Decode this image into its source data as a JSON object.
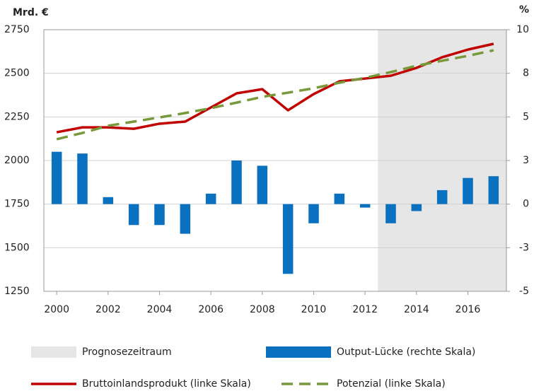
{
  "chart_data": {
    "type": "combo",
    "y_label": "Mrd. €",
    "y2_label": "%",
    "x": [
      2000,
      2001,
      2002,
      2003,
      2004,
      2005,
      2006,
      2007,
      2008,
      2009,
      2010,
      2011,
      2012,
      2013,
      2014,
      2015,
      2016,
      2017
    ],
    "xlim": [
      1999.5,
      2017.5
    ],
    "xticks": [
      2000,
      2002,
      2004,
      2006,
      2008,
      2010,
      2012,
      2014,
      2016
    ],
    "ylim": [
      1250,
      2750
    ],
    "yticks": [
      1250,
      1500,
      1750,
      2000,
      2250,
      2500,
      2750
    ],
    "y2lim": [
      -5,
      10
    ],
    "y2ticks": [
      -5,
      {
        "value": -2.5,
        "label": "-3"
      },
      0,
      {
        "value": 2.5,
        "label": "3"
      },
      5,
      {
        "value": 7.5,
        "label": "8"
      },
      10
    ],
    "grid": true,
    "shaded_region": {
      "name": "Prognosezeitraum",
      "xrange": [
        2012.5,
        2017.5
      ],
      "color": "#e6e6e6"
    },
    "series": [
      {
        "name": "Output-Lücke (rechte Skala)",
        "type": "bar",
        "axis": "y2",
        "color": "#0a70c0",
        "values": [
          3.0,
          2.9,
          0.4,
          -1.2,
          -1.2,
          -1.7,
          0.6,
          2.5,
          2.2,
          -4.0,
          -1.1,
          0.6,
          -0.2,
          -1.1,
          -0.4,
          0.8,
          1.5,
          1.6
        ]
      },
      {
        "name": "Bruttoinlandsprodukt (linke Skala)",
        "type": "line",
        "color": "#c00000",
        "values": [
          2162,
          2190,
          2190,
          2182,
          2211,
          2223,
          2304,
          2385,
          2409,
          2288,
          2381,
          2454,
          2470,
          2486,
          2531,
          2592,
          2636,
          2669
        ]
      },
      {
        "name": "Potenzial (linke Skala)",
        "type": "line",
        "dashed": true,
        "color": "#77993a",
        "values": [
          2122,
          2158,
          2199,
          2223,
          2247,
          2272,
          2300,
          2332,
          2365,
          2389,
          2414,
          2446,
          2474,
          2507,
          2543,
          2572,
          2600,
          2632
        ]
      }
    ]
  }
}
